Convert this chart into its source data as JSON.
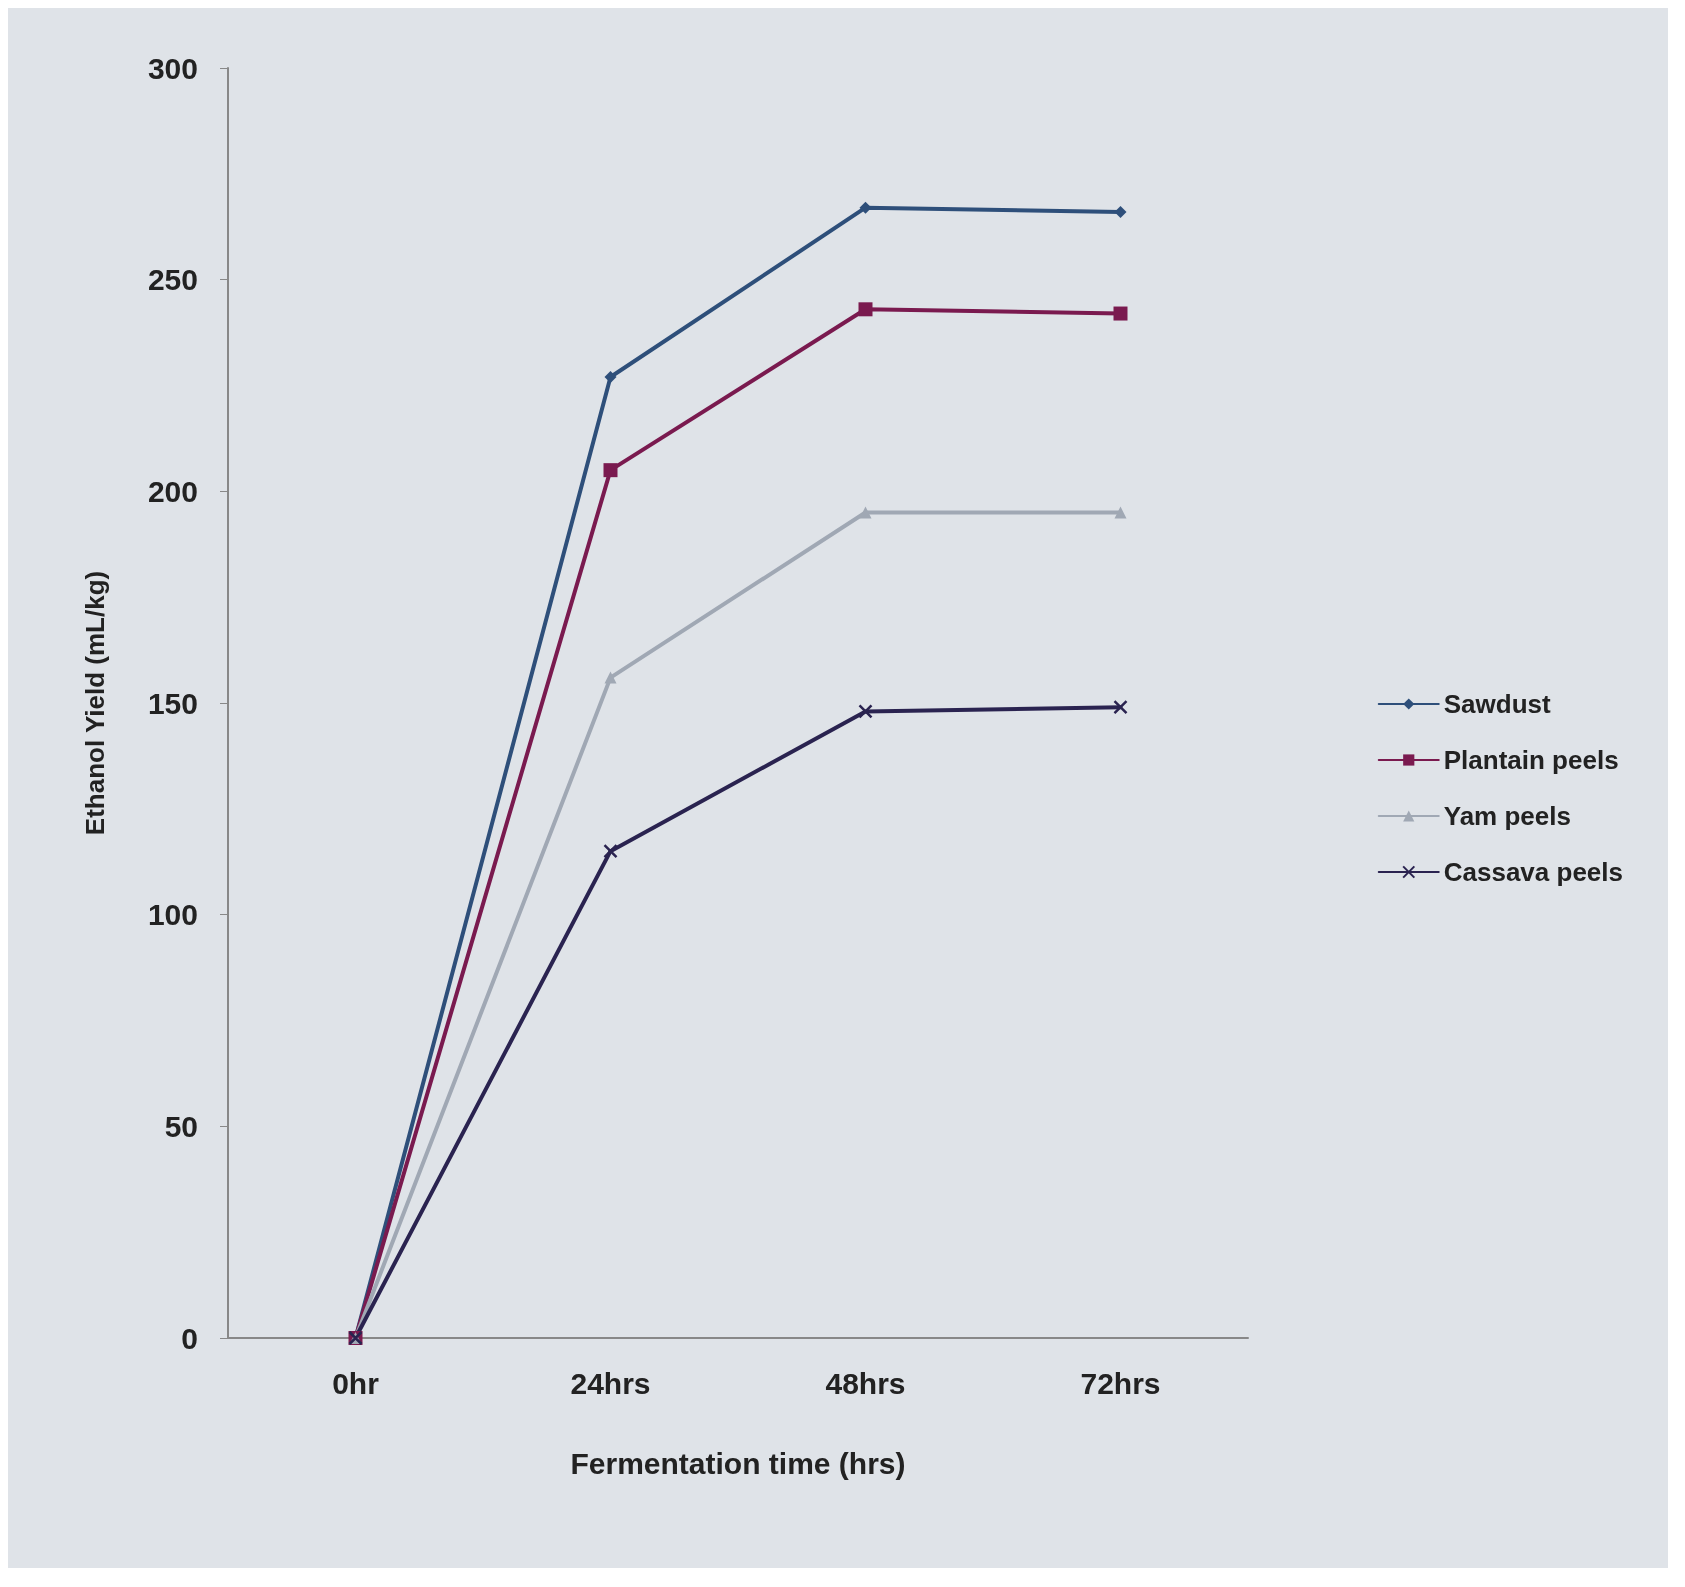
{
  "chart_data": {
    "type": "line",
    "xlabel": "Fermentation time (hrs)",
    "ylabel": "Ethanol Yield (mL/kg)",
    "categories": [
      "0hr",
      "24hrs",
      "48hrs",
      "72hrs"
    ],
    "series": [
      {
        "name": "Sawdust",
        "color": "#2e4f7a",
        "marker": "diamond",
        "values": [
          0,
          227,
          267,
          266
        ]
      },
      {
        "name": "Plantain peels",
        "color": "#7a1a4f",
        "marker": "square",
        "values": [
          0,
          205,
          243,
          242
        ]
      },
      {
        "name": "Yam peels",
        "color": "#a0a8b4",
        "marker": "triangle",
        "values": [
          0,
          156,
          195,
          195
        ]
      },
      {
        "name": "Cassava peels",
        "color": "#2a2350",
        "marker": "cross",
        "values": [
          0,
          115,
          148,
          149
        ]
      }
    ],
    "ylim": [
      0,
      300
    ],
    "yticks": [
      0,
      50,
      100,
      150,
      200,
      250,
      300
    ],
    "legend": "right",
    "line_style": "solid"
  }
}
